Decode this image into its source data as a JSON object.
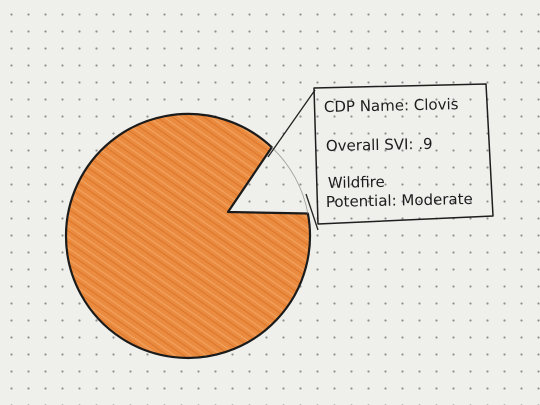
{
  "colors": {
    "slice_fill": "#e98a3e",
    "outline": "#1b1b1b",
    "paper": "#efefec"
  },
  "chart_data": {
    "type": "pie",
    "slices": [
      {
        "label": "Overall SVI",
        "value": 0.9
      },
      {
        "label": "",
        "value": 0.1,
        "unfilled": true
      }
    ],
    "annotation": {
      "lines": [
        "CDP Name: Clovis",
        "Overall SVI: .9",
        "Wildfire",
        "Potential: Moderate"
      ]
    }
  }
}
